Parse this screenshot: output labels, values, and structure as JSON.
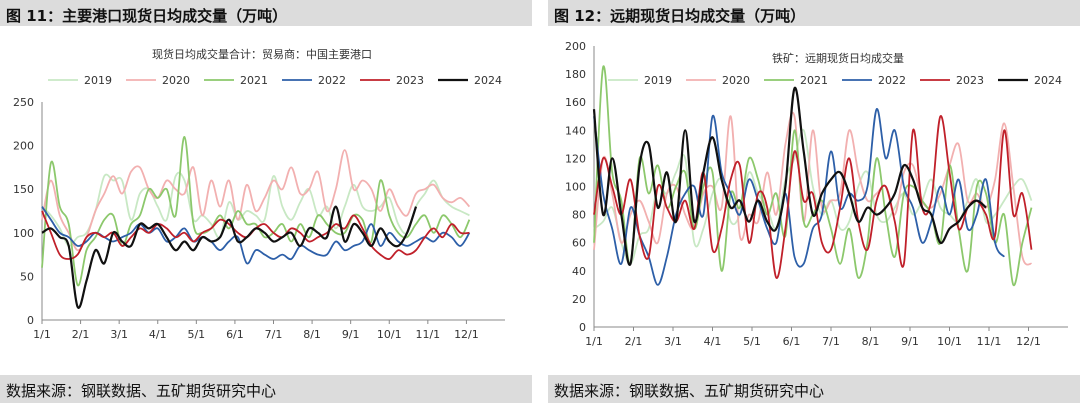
{
  "panels": [
    {
      "title": "图 11：主要港口现货日均成交量（万吨）",
      "source": "数据来源：钢联数据、五矿期货研究中心"
    },
    {
      "title": "图 12：远期现货日均成交量（万吨）",
      "source": "数据来源：钢联数据、五矿期货研究中心"
    }
  ],
  "chart_data": [
    {
      "type": "line",
      "title": "现货日均成交量合计：贸易商：中国主要港口",
      "x_tick_labels": [
        "1/1",
        "2/1",
        "3/1",
        "4/1",
        "5/1",
        "6/1",
        "7/1",
        "8/1",
        "9/1",
        "10/1",
        "11/1",
        "12/1"
      ],
      "ylim": [
        0,
        250
      ],
      "y_ticks": [
        0,
        50,
        100,
        150,
        200,
        250
      ],
      "x_unit": "week",
      "grid": false,
      "legend_position": "top",
      "series": [
        {
          "name": "2019",
          "color": "#c8e8c4",
          "values": [
            130,
            120,
            105,
            85,
            95,
            100,
            125,
            165,
            160,
            160,
            115,
            145,
            150,
            130,
            115,
            165,
            160,
            115,
            120,
            110,
            95,
            135,
            115,
            125,
            120,
            115,
            165,
            130,
            115,
            135,
            150,
            120,
            130,
            105,
            130,
            155,
            130,
            125,
            130,
            140,
            110,
            100,
            130,
            145,
            160,
            140,
            130,
            125,
            120
          ]
        },
        {
          "name": "2020",
          "color": "#f2b0b0",
          "values": [
            115,
            160,
            120,
            100,
            80,
            95,
            125,
            145,
            165,
            145,
            170,
            175,
            150,
            140,
            160,
            150,
            145,
            175,
            120,
            160,
            130,
            160,
            115,
            155,
            125,
            140,
            160,
            150,
            175,
            145,
            150,
            170,
            125,
            150,
            195,
            150,
            160,
            150,
            125,
            150,
            130,
            120,
            145,
            150,
            155,
            140,
            135,
            140,
            130
          ]
        },
        {
          "name": "2021",
          "color": "#8cc86c",
          "values": [
            60,
            180,
            130,
            110,
            40,
            80,
            95,
            115,
            120,
            85,
            110,
            120,
            150,
            140,
            150,
            120,
            210,
            110,
            100,
            105,
            120,
            105,
            125,
            110,
            110,
            95,
            100,
            110,
            90,
            110,
            95,
            120,
            110,
            100,
            100,
            120,
            115,
            90,
            160,
            120,
            100,
            95,
            110,
            120,
            100,
            120,
            110,
            95,
            115
          ]
        },
        {
          "name": "2022",
          "color": "#2d5fa8",
          "values": [
            130,
            115,
            100,
            95,
            85,
            90,
            100,
            95,
            90,
            95,
            100,
            110,
            100,
            105,
            90,
            95,
            105,
            90,
            95,
            90,
            80,
            90,
            95,
            65,
            80,
            75,
            70,
            75,
            70,
            85,
            80,
            75,
            75,
            90,
            80,
            85,
            90,
            110,
            85,
            100,
            90,
            85,
            90,
            95,
            90,
            100,
            95,
            85,
            100
          ]
        },
        {
          "name": "2023",
          "color": "#c0202a",
          "values": [
            125,
            100,
            75,
            70,
            75,
            95,
            100,
            95,
            100,
            85,
            95,
            105,
            100,
            110,
            105,
            95,
            100,
            90,
            100,
            105,
            115,
            110,
            100,
            95,
            105,
            110,
            100,
            95,
            105,
            100,
            90,
            95,
            100,
            110,
            105,
            120,
            105,
            85,
            75,
            70,
            80,
            75,
            80,
            95,
            105,
            95,
            110,
            100,
            100
          ]
        },
        {
          "name": "2024",
          "color": "#111111",
          "values": [
            100,
            105,
            95,
            85,
            15,
            45,
            80,
            65,
            100,
            90,
            85,
            110,
            105,
            110,
            95,
            80,
            90,
            80,
            95,
            90,
            95,
            115,
            90,
            95,
            105,
            100,
            90,
            95,
            100,
            85,
            105,
            100,
            95,
            130,
            90,
            110,
            100,
            85,
            105,
            90,
            85,
            100,
            130
          ]
        }
      ]
    },
    {
      "type": "line",
      "title": "铁矿：远期现货日均成交量",
      "x_tick_labels": [
        "1/1",
        "2/1",
        "3/1",
        "4/1",
        "5/1",
        "6/1",
        "7/1",
        "8/1",
        "9/1",
        "10/1",
        "11/1",
        "12/1"
      ],
      "ylim": [
        0,
        200
      ],
      "y_ticks": [
        0,
        20,
        40,
        60,
        80,
        100,
        120,
        140,
        160,
        180,
        200
      ],
      "x_unit": "week",
      "grid": false,
      "legend_position": "top",
      "series": [
        {
          "name": "2019",
          "color": "#c8e8c4",
          "values": [
            70,
            75,
            85,
            60,
            45,
            65,
            70,
            100,
            95,
            110,
            120,
            60,
            70,
            95,
            105,
            75,
            80,
            110,
            95,
            85,
            70,
            105,
            120,
            140,
            100,
            80,
            90,
            70,
            75,
            100,
            110,
            80,
            75,
            85,
            95,
            80,
            90,
            105,
            85,
            80,
            75,
            90,
            105,
            75,
            80,
            90,
            100,
            105,
            90
          ]
        },
        {
          "name": "2020",
          "color": "#f2b0b0",
          "values": [
            55,
            120,
            95,
            60,
            80,
            90,
            75,
            60,
            95,
            100,
            80,
            70,
            95,
            100,
            85,
            150,
            65,
            80,
            75,
            110,
            80,
            130,
            150,
            75,
            140,
            85,
            90,
            95,
            140,
            110,
            90,
            95,
            100,
            80,
            110,
            115,
            90,
            85,
            95,
            115,
            130,
            90,
            95,
            85,
            105,
            145,
            100,
            50,
            45
          ]
        },
        {
          "name": "2021",
          "color": "#8cc86c",
          "values": [
            60,
            185,
            110,
            90,
            45,
            120,
            95,
            115,
            85,
            100,
            110,
            70,
            100,
            110,
            40,
            95,
            85,
            120,
            105,
            80,
            95,
            65,
            140,
            75,
            80,
            90,
            70,
            45,
            70,
            35,
            60,
            120,
            80,
            50,
            95,
            100,
            90,
            80,
            60,
            115,
            70,
            40,
            100,
            95,
            60,
            80,
            30,
            60,
            85
          ]
        },
        {
          "name": "2022",
          "color": "#2d5fa8",
          "values": [
            150,
            95,
            70,
            45,
            85,
            65,
            50,
            30,
            50,
            80,
            95,
            100,
            80,
            150,
            110,
            95,
            80,
            105,
            90,
            70,
            60,
            95,
            50,
            45,
            70,
            80,
            125,
            85,
            95,
            90,
            100,
            155,
            120,
            140,
            100,
            85,
            60,
            75,
            100,
            80,
            105,
            70,
            80,
            105,
            60,
            50
          ]
        },
        {
          "name": "2023",
          "color": "#c0202a",
          "values": [
            80,
            120,
            100,
            80,
            105,
            65,
            50,
            100,
            85,
            75,
            90,
            70,
            110,
            55,
            70,
            105,
            115,
            60,
            95,
            85,
            35,
            70,
            125,
            90,
            95,
            60,
            55,
            85,
            120,
            75,
            55,
            90,
            100,
            75,
            45,
            140,
            85,
            90,
            150,
            110,
            70,
            85,
            90,
            80,
            65,
            140,
            80,
            95,
            55
          ]
        },
        {
          "name": "2024",
          "color": "#111111",
          "values": [
            155,
            80,
            120,
            80,
            45,
            115,
            130,
            85,
            110,
            75,
            140,
            75,
            110,
            135,
            105,
            85,
            90,
            75,
            90,
            75,
            70,
            100,
            170,
            125,
            80,
            95,
            105,
            110,
            95,
            75,
            85,
            80,
            85,
            95,
            115,
            105,
            85,
            80,
            60,
            70,
            75,
            85,
            90,
            85
          ]
        }
      ]
    }
  ]
}
